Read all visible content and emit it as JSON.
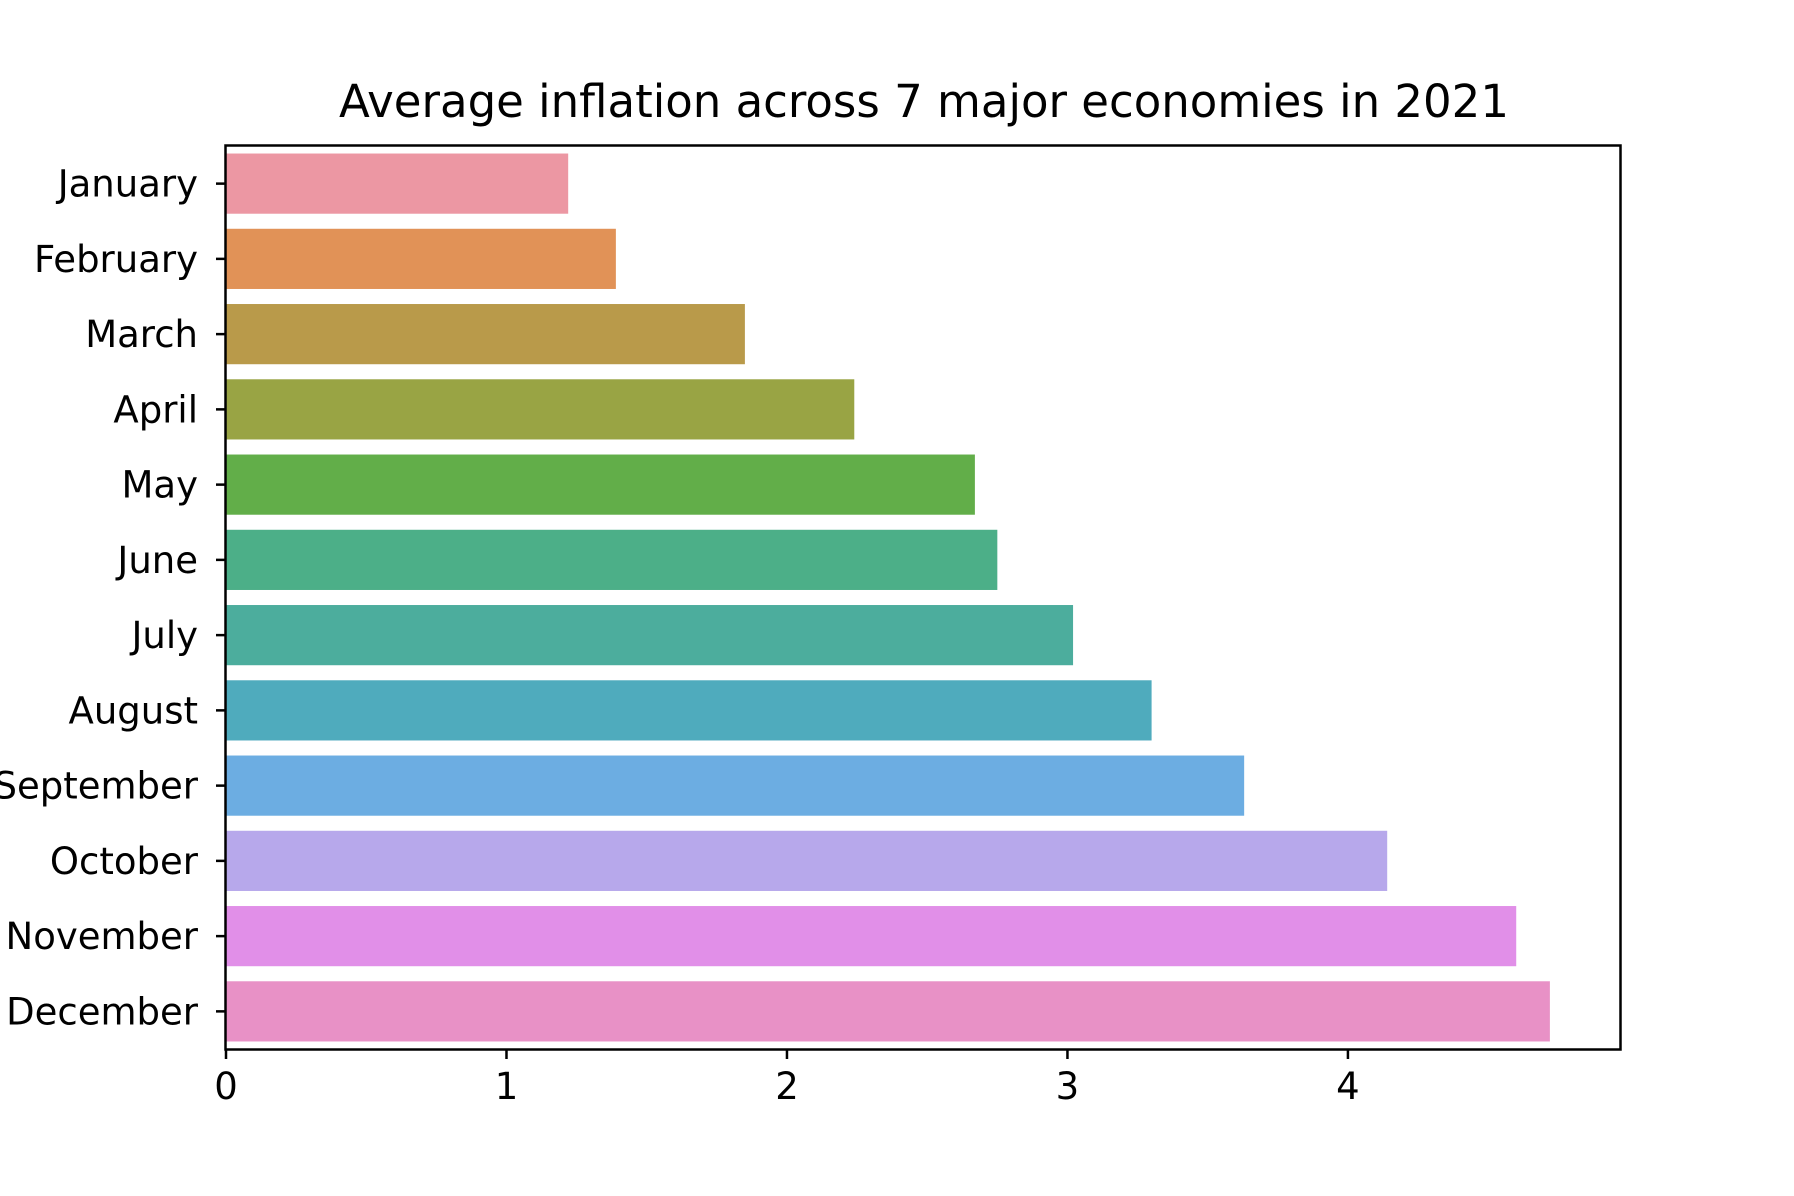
{
  "chart_data": {
    "type": "bar",
    "orientation": "horizontal",
    "title": "Average inflation across 7 major economies in 2021",
    "xlabel": "",
    "ylabel": "",
    "xlim": [
      0,
      4.97
    ],
    "xticks": [
      "0",
      "1",
      "2",
      "3",
      "4"
    ],
    "grid": false,
    "categories": [
      "January",
      "February",
      "March",
      "April",
      "May",
      "June",
      "July",
      "August",
      "September",
      "October",
      "November",
      "December"
    ],
    "values": [
      1.22,
      1.39,
      1.85,
      2.24,
      2.67,
      2.75,
      3.02,
      3.3,
      3.63,
      4.14,
      4.6,
      4.72
    ],
    "colors": [
      "#ec97a3",
      "#e19257",
      "#b99a4a",
      "#99a444",
      "#62ae49",
      "#4caf88",
      "#4cad9d",
      "#4fabbd",
      "#6cadE2",
      "#b7a8eb",
      "#e18fe8",
      "#e891c6"
    ]
  }
}
